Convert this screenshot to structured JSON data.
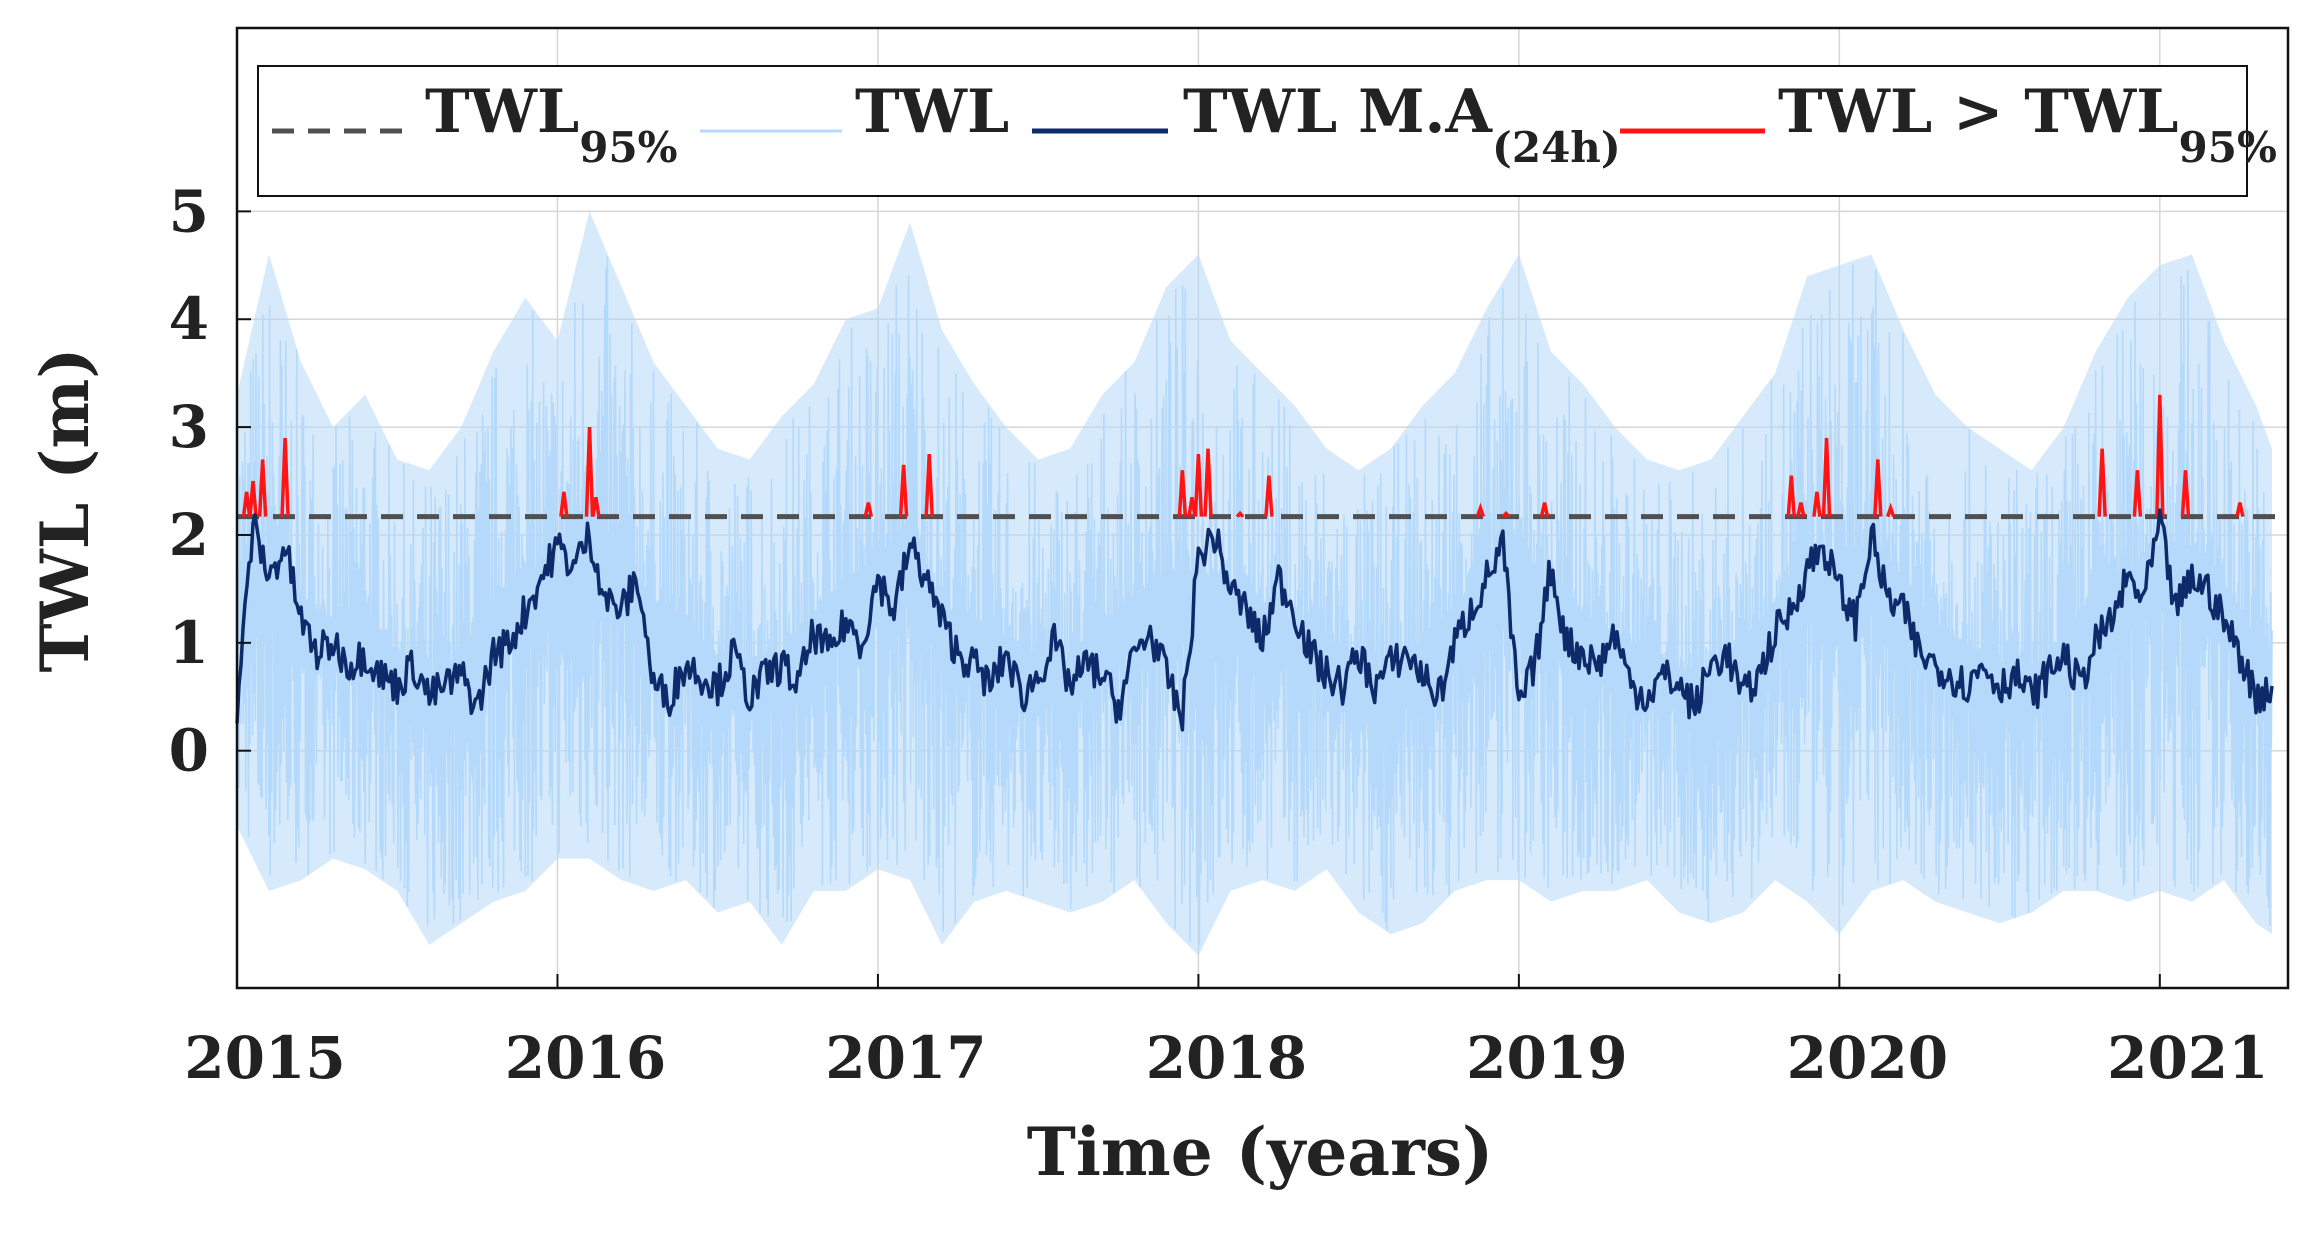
{
  "chart_data": {
    "type": "line",
    "xlabel": "Time (years)",
    "ylabel": "TWL (m)",
    "xlim": [
      2015.0,
      2021.4
    ],
    "ylim": [
      -2.2,
      6.7
    ],
    "x_ticks": [
      2015,
      2016,
      2017,
      2018,
      2019,
      2020,
      2021
    ],
    "y_ticks": [
      0,
      1,
      2,
      3,
      4,
      5
    ],
    "grid": true,
    "legend_position": "top, inside plot",
    "legend": [
      {
        "key": "p95",
        "label": "TWL",
        "sub": "95%",
        "style": "dashed",
        "color": "#505050"
      },
      {
        "key": "twl",
        "label": "TWL",
        "sub": "",
        "style": "solid",
        "color": "#b5d9fa"
      },
      {
        "key": "ma",
        "label": "TWL M.A",
        "sub": "(24h)",
        "style": "solid",
        "color": "#0d2a6b"
      },
      {
        "key": "exceed",
        "label": "TWL > TWL",
        "sub": "95%",
        "style": "solid",
        "color": "#ff1414"
      }
    ],
    "series": [
      {
        "name": "TWL",
        "style": "band",
        "color": "#b5d9fa",
        "x": [
          2015.0,
          2015.1,
          2015.2,
          2015.3,
          2015.4,
          2015.5,
          2015.6,
          2015.7,
          2015.8,
          2015.9,
          2016.0,
          2016.1,
          2016.2,
          2016.3,
          2016.4,
          2016.5,
          2016.6,
          2016.7,
          2016.8,
          2016.9,
          2017.0,
          2017.1,
          2017.2,
          2017.3,
          2017.4,
          2017.5,
          2017.6,
          2017.7,
          2017.8,
          2017.9,
          2018.0,
          2018.1,
          2018.2,
          2018.3,
          2018.4,
          2018.5,
          2018.6,
          2018.7,
          2018.8,
          2018.9,
          2019.0,
          2019.1,
          2019.2,
          2019.3,
          2019.4,
          2019.5,
          2019.6,
          2019.7,
          2019.8,
          2019.9,
          2020.0,
          2020.1,
          2020.2,
          2020.3,
          2020.4,
          2020.5,
          2020.6,
          2020.7,
          2020.8,
          2020.9,
          2021.0,
          2021.1,
          2021.2,
          2021.3,
          2021.35
        ],
        "max": [
          3.3,
          4.6,
          3.6,
          3.0,
          3.3,
          2.7,
          2.6,
          3.0,
          3.7,
          4.2,
          3.8,
          5.0,
          4.3,
          3.6,
          3.2,
          2.8,
          2.7,
          3.1,
          3.4,
          4.0,
          4.1,
          4.9,
          3.9,
          3.4,
          3.0,
          2.7,
          2.8,
          3.3,
          3.6,
          4.3,
          4.6,
          3.8,
          3.5,
          3.2,
          2.8,
          2.6,
          2.8,
          3.2,
          3.5,
          4.1,
          4.6,
          3.7,
          3.4,
          3.0,
          2.7,
          2.6,
          2.7,
          3.1,
          3.5,
          4.4,
          4.5,
          4.6,
          3.9,
          3.3,
          3.0,
          2.8,
          2.6,
          3.0,
          3.7,
          4.2,
          4.5,
          4.6,
          3.8,
          3.2,
          2.8
        ],
        "min": [
          -0.7,
          -1.3,
          -1.2,
          -1.0,
          -1.1,
          -1.3,
          -1.8,
          -1.6,
          -1.4,
          -1.3,
          -1.0,
          -1.0,
          -1.2,
          -1.3,
          -1.2,
          -1.5,
          -1.4,
          -1.8,
          -1.3,
          -1.3,
          -1.1,
          -1.2,
          -1.8,
          -1.4,
          -1.3,
          -1.4,
          -1.5,
          -1.4,
          -1.2,
          -1.6,
          -1.9,
          -1.3,
          -1.2,
          -1.3,
          -1.1,
          -1.5,
          -1.7,
          -1.6,
          -1.3,
          -1.2,
          -1.2,
          -1.4,
          -1.3,
          -1.3,
          -1.2,
          -1.5,
          -1.6,
          -1.5,
          -1.2,
          -1.4,
          -1.7,
          -1.3,
          -1.2,
          -1.4,
          -1.5,
          -1.6,
          -1.5,
          -1.3,
          -1.3,
          -1.4,
          -1.3,
          -1.4,
          -1.2,
          -1.6,
          -1.7
        ]
      },
      {
        "name": "TWL M.A(24h)",
        "style": "line",
        "color": "#0d2a6b",
        "x": [
          2015.0,
          2015.05,
          2015.1,
          2015.15,
          2015.2,
          2015.25,
          2015.3,
          2015.35,
          2015.4,
          2015.45,
          2015.5,
          2015.55,
          2015.6,
          2015.65,
          2015.7,
          2015.75,
          2015.8,
          2015.85,
          2015.9,
          2015.95,
          2016.0,
          2016.05,
          2016.1,
          2016.15,
          2016.2,
          2016.25,
          2016.3,
          2016.35,
          2016.4,
          2016.45,
          2016.5,
          2016.55,
          2016.6,
          2016.65,
          2016.7,
          2016.75,
          2016.8,
          2016.85,
          2016.9,
          2016.95,
          2017.0,
          2017.05,
          2017.1,
          2017.15,
          2017.2,
          2017.25,
          2017.3,
          2017.35,
          2017.4,
          2017.45,
          2017.5,
          2017.55,
          2017.6,
          2017.65,
          2017.7,
          2017.75,
          2017.8,
          2017.85,
          2017.9,
          2017.95,
          2018.0,
          2018.05,
          2018.1,
          2018.15,
          2018.2,
          2018.25,
          2018.3,
          2018.35,
          2018.4,
          2018.45,
          2018.5,
          2018.55,
          2018.6,
          2018.65,
          2018.7,
          2018.75,
          2018.8,
          2018.85,
          2018.9,
          2018.95,
          2019.0,
          2019.05,
          2019.1,
          2019.15,
          2019.2,
          2019.25,
          2019.3,
          2019.35,
          2019.4,
          2019.45,
          2019.5,
          2019.55,
          2019.6,
          2019.65,
          2019.7,
          2019.75,
          2019.8,
          2019.85,
          2019.9,
          2019.95,
          2020.0,
          2020.05,
          2020.1,
          2020.15,
          2020.2,
          2020.25,
          2020.3,
          2020.35,
          2020.4,
          2020.45,
          2020.5,
          2020.55,
          2020.6,
          2020.65,
          2020.7,
          2020.75,
          2020.8,
          2020.85,
          2020.9,
          2020.95,
          2021.0,
          2021.05,
          2021.1,
          2021.15,
          2021.2,
          2021.25,
          2021.3,
          2021.35
        ],
        "values": [
          0.4,
          2.1,
          1.6,
          1.9,
          1.2,
          0.9,
          1.0,
          0.8,
          0.9,
          0.7,
          0.6,
          0.8,
          0.5,
          0.6,
          0.7,
          0.4,
          0.9,
          1.0,
          1.3,
          1.6,
          1.9,
          1.7,
          2.0,
          1.4,
          1.3,
          1.6,
          0.6,
          0.5,
          0.8,
          0.7,
          0.6,
          0.9,
          0.5,
          0.7,
          0.8,
          0.6,
          1.1,
          0.9,
          1.2,
          1.0,
          1.6,
          1.3,
          1.9,
          1.6,
          1.2,
          0.9,
          0.8,
          0.6,
          0.9,
          0.5,
          0.7,
          1.0,
          0.6,
          0.8,
          0.7,
          0.4,
          0.9,
          1.1,
          0.7,
          0.3,
          1.8,
          2.0,
          1.5,
          1.3,
          1.0,
          1.6,
          1.3,
          0.9,
          0.7,
          0.6,
          0.9,
          0.6,
          0.8,
          0.9,
          0.7,
          0.5,
          1.0,
          1.3,
          1.6,
          1.9,
          0.4,
          0.8,
          1.7,
          1.0,
          0.9,
          0.8,
          1.1,
          0.6,
          0.5,
          0.7,
          0.6,
          0.4,
          0.8,
          0.9,
          0.5,
          0.7,
          1.1,
          1.3,
          1.7,
          1.9,
          1.5,
          1.2,
          2.0,
          1.4,
          1.3,
          0.9,
          0.8,
          0.7,
          0.6,
          0.8,
          0.6,
          0.7,
          0.5,
          0.7,
          0.9,
          0.6,
          1.0,
          1.2,
          1.6,
          1.4,
          2.1,
          1.3,
          1.6,
          1.5,
          1.2,
          0.9,
          0.5,
          0.6
        ]
      },
      {
        "name": "TWL95%",
        "style": "dashed",
        "color": "#505050",
        "values": [
          2.17
        ]
      },
      {
        "name": "TWL > TWL95%",
        "style": "spikes",
        "color": "#ff1414",
        "x": [
          2015.03,
          2015.05,
          2015.08,
          2015.15,
          2016.02,
          2016.1,
          2016.12,
          2016.97,
          2017.08,
          2017.16,
          2017.95,
          2017.98,
          2018.0,
          2018.03,
          2018.13,
          2018.22,
          2018.88,
          2018.96,
          2019.08,
          2019.85,
          2019.88,
          2019.93,
          2019.96,
          2020.12,
          2020.16,
          2020.82,
          2020.93,
          2021.0,
          2021.08,
          2021.25
        ],
        "values": [
          2.4,
          2.5,
          2.7,
          2.9,
          2.4,
          3.0,
          2.35,
          2.3,
          2.65,
          2.75,
          2.6,
          2.35,
          2.75,
          2.8,
          2.2,
          2.55,
          2.25,
          2.2,
          2.3,
          2.55,
          2.3,
          2.4,
          2.9,
          2.7,
          2.25,
          2.8,
          2.6,
          3.3,
          2.6,
          2.3
        ]
      }
    ]
  }
}
